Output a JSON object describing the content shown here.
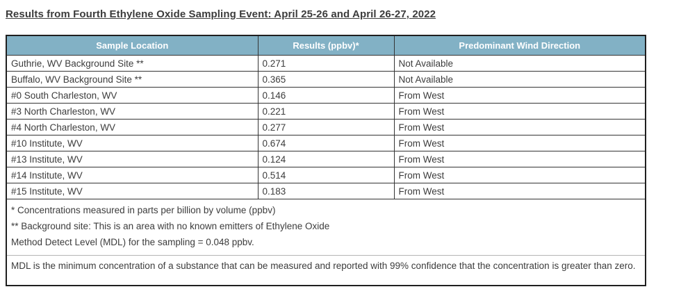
{
  "title": "Results from Fourth Ethylene Oxide Sampling Event: April 25-26 and April 26-27, 2022",
  "table": {
    "headers": [
      "Sample Location",
      "Results (ppbv)*",
      "Predominant Wind Direction"
    ],
    "rows": [
      {
        "location": "Guthrie, WV Background Site **",
        "result": "0.271",
        "wind": "Not Available"
      },
      {
        "location": "Buffalo, WV Background Site **",
        "result": "0.365",
        "wind": "Not Available"
      },
      {
        "location": "#0 South Charleston, WV",
        "result": "0.146",
        "wind": "From West"
      },
      {
        "location": "#3 North Charleston, WV",
        "result": "0.221",
        "wind": "From West"
      },
      {
        "location": "#4 North Charleston, WV",
        "result": "0.277",
        "wind": "From West"
      },
      {
        "location": "#10 Institute, WV",
        "result": "0.674",
        "wind": "From West"
      },
      {
        "location": "#13 Institute, WV",
        "result": "0.124",
        "wind": "From West"
      },
      {
        "location": "#14 Institute, WV",
        "result": "0.514",
        "wind": "From West"
      },
      {
        "location": "#15 Institute, WV",
        "result": "0.183",
        "wind": "From West"
      }
    ],
    "footnotes": [
      "* Concentrations measured in parts per billion by volume (ppbv)",
      "** Background site: This is an area with no known emitters of Ethylene Oxide",
      "Method Detect Level (MDL) for the sampling = 0.048 ppbv."
    ],
    "mdl_note": "MDL is the minimum concentration of a substance that can be measured and reported with 99% confidence that the concentration is greater than zero."
  },
  "colors": {
    "header_bg": "#82b1c5",
    "header_text": "#ffffff",
    "body_text": "#3c3c3c",
    "border": "#333333",
    "border_dark": "#1f1f1f",
    "border_light": "#b5b5b5"
  }
}
